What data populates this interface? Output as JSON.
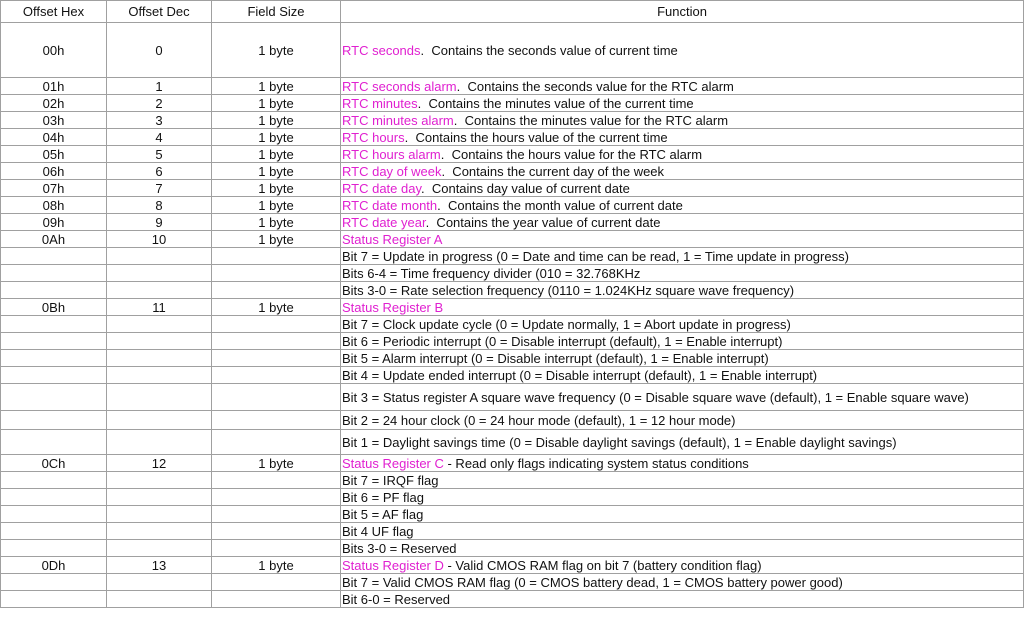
{
  "table": {
    "columns": [
      "Offset Hex",
      "Offset Dec",
      "Field Size",
      "Function"
    ],
    "rows": [
      {
        "hex": "00h",
        "dec": "0",
        "size": "1 byte",
        "name": "RTC seconds",
        "text": ".  Contains the seconds value of current time"
      },
      {
        "hex": "01h",
        "dec": "1",
        "size": "1 byte",
        "name": "RTC seconds alarm",
        "text": ".  Contains the seconds value for the RTC alarm"
      },
      {
        "hex": "02h",
        "dec": "2",
        "size": "1 byte",
        "name": "RTC minutes",
        "text": ".  Contains the minutes value of the current time"
      },
      {
        "hex": "03h",
        "dec": "3",
        "size": "1 byte",
        "name": "RTC minutes alarm",
        "text": ".  Contains the minutes value for the RTC alarm"
      },
      {
        "hex": "04h",
        "dec": "4",
        "size": "1 byte",
        "name": "RTC hours",
        "text": ".  Contains the hours value of the current time"
      },
      {
        "hex": "05h",
        "dec": "5",
        "size": "1 byte",
        "name": "RTC hours alarm",
        "text": ".  Contains the hours value for the RTC alarm"
      },
      {
        "hex": "06h",
        "dec": "6",
        "size": "1 byte",
        "name": "RTC day of week",
        "text": ".  Contains the current day of the week"
      },
      {
        "hex": "07h",
        "dec": "7",
        "size": "1 byte",
        "name": "RTC date day",
        "text": ".  Contains day value of current date"
      },
      {
        "hex": "08h",
        "dec": "8",
        "size": "1 byte",
        "name": "RTC date month",
        "text": ".  Contains the month value of current date"
      },
      {
        "hex": "09h",
        "dec": "9",
        "size": "1 byte",
        "name": "RTC date year",
        "text": ".  Contains the year value of current date"
      },
      {
        "hex": "0Ah",
        "dec": "10",
        "size": "1 byte",
        "name": "Status Register A"
      },
      {
        "text": "Bit 7 = Update in progress (0 = Date and time can be read, 1 = Time update in progress)"
      },
      {
        "text": "Bits 6-4 = Time frequency divider (010 = 32.768KHz"
      },
      {
        "text": "Bits 3-0 = Rate selection frequency (0110 = 1.024KHz square wave frequency)"
      },
      {
        "hex": "0Bh",
        "dec": "11",
        "size": "1 byte",
        "name": "Status Register B"
      },
      {
        "text": "Bit 7 = Clock update cycle (0 = Update normally, 1 = Abort update in progress)"
      },
      {
        "text": "Bit 6 = Periodic interrupt (0 = Disable interrupt (default), 1 = Enable interrupt)"
      },
      {
        "text": "Bit 5 = Alarm interrupt (0 = Disable interrupt (default), 1 = Enable interrupt)"
      },
      {
        "text": "Bit 4 = Update ended interrupt (0 = Disable interrupt (default), 1 = Enable interrupt)"
      },
      {
        "text": "Bit 3 = Status register A square wave frequency (0 = Disable square wave (default), 1 = Enable square wave)"
      },
      {
        "text": "Bit 2 = 24 hour clock (0 = 24 hour mode (default), 1 = 12 hour mode)"
      },
      {
        "text": "Bit 1 = Daylight savings time (0 = Disable daylight savings (default), 1 = Enable daylight savings)"
      },
      {
        "hex": "0Ch",
        "dec": "12",
        "size": "1 byte",
        "name": "Status Register C",
        "text": " - Read only flags indicating system status conditions"
      },
      {
        "text": "Bit 7 = IRQF flag"
      },
      {
        "text": "Bit 6 = PF flag"
      },
      {
        "text": "Bit 5 = AF flag"
      },
      {
        "text": "Bit 4 UF flag"
      },
      {
        "text": "Bits 3-0 = Reserved"
      },
      {
        "hex": "0Dh",
        "dec": "13",
        "size": "1 byte",
        "name": "Status Register D",
        "text": " - Valid CMOS RAM flag on bit 7 (battery condition flag)"
      },
      {
        "text": "Bit 7 = Valid CMOS RAM flag (0 = CMOS battery dead, 1 = CMOS battery power good)"
      },
      {
        "text": "Bit 6-0 = Reserved"
      }
    ]
  }
}
